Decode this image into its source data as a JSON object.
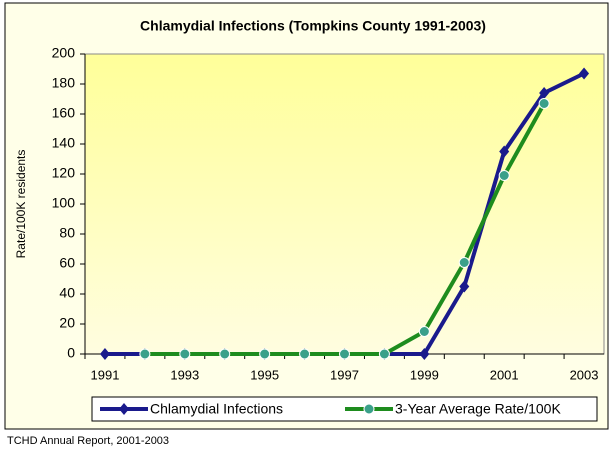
{
  "chart_data": {
    "type": "line",
    "title": "Chlamydial Infections  (Tompkins County 1991-2003)",
    "y_label": "Rate/100K residents",
    "categories": [
      "1991",
      null,
      "1993",
      null,
      "1995",
      null,
      "1997",
      null,
      "1999",
      null,
      "2001",
      null,
      "2003"
    ],
    "series": [
      {
        "name": "Chlamydial Infections",
        "color": "#1a1a8c",
        "marker": "diamond",
        "values": [
          0,
          0,
          0,
          0,
          0,
          0,
          0,
          0,
          0,
          45,
          135,
          174,
          187
        ]
      },
      {
        "name": "3-Year Average Rate/100K",
        "color": "#1e8c1e",
        "marker_color": "#3aa08a",
        "marker": "circle",
        "values": [
          null,
          0,
          0,
          0,
          0,
          0,
          0,
          0,
          15,
          61,
          119,
          167,
          null
        ]
      }
    ],
    "ylim": [
      0,
      200
    ],
    "yticks": [
      0,
      20,
      40,
      60,
      80,
      100,
      120,
      140,
      160,
      180,
      200
    ],
    "legend": "bottom",
    "source": "TCHD Annual Report, 2001-2003"
  }
}
